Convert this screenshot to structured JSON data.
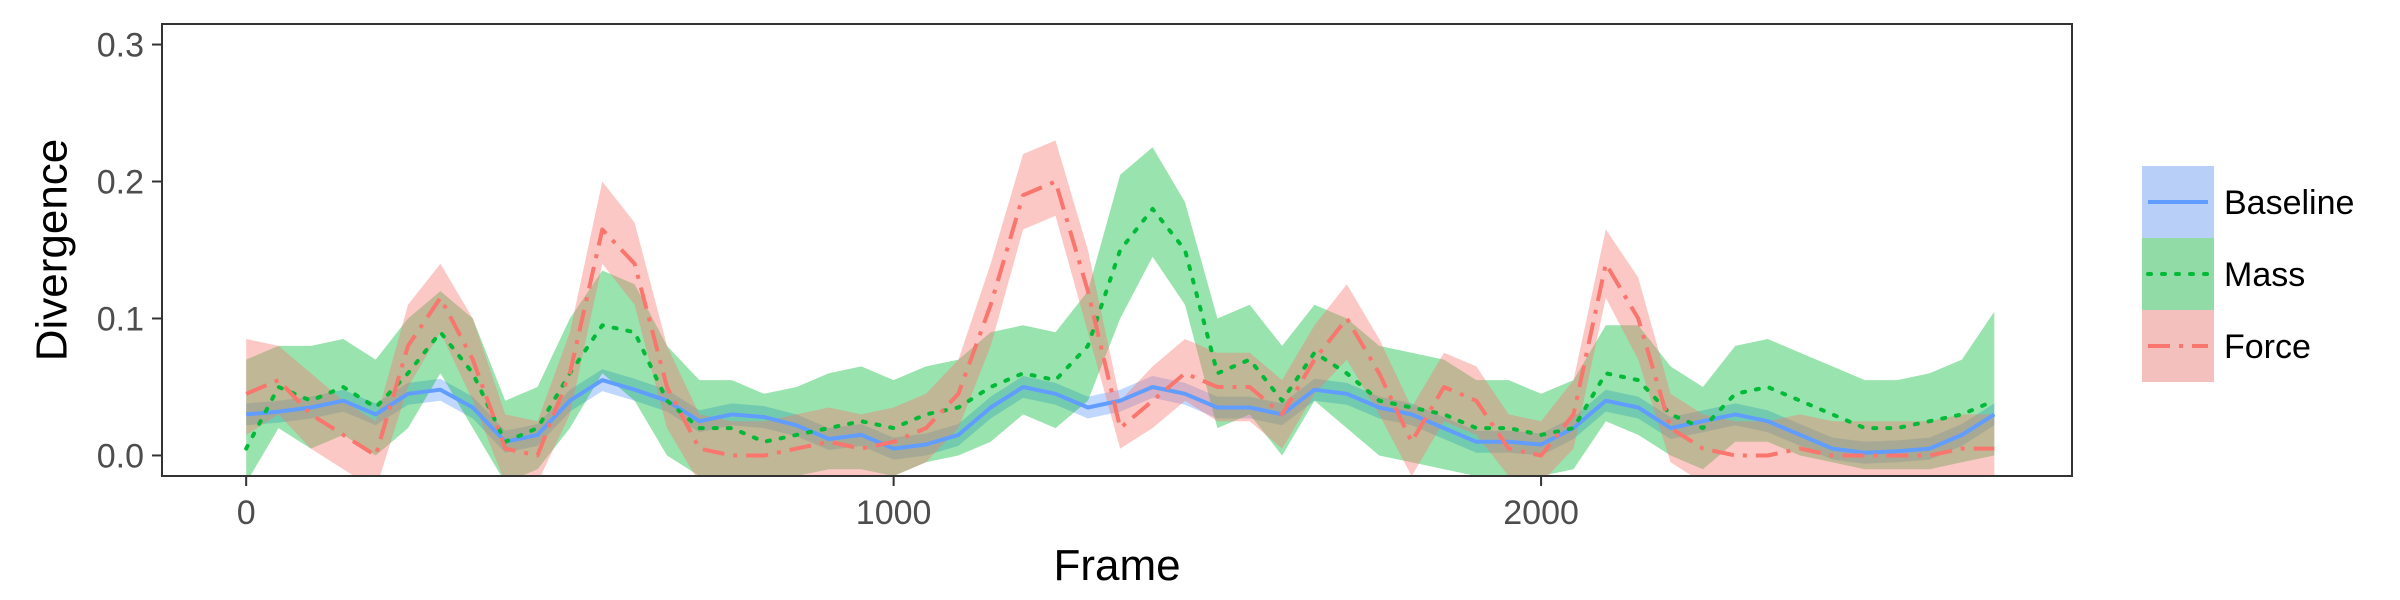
{
  "chart_data": {
    "type": "line",
    "title": "",
    "xlabel": "Frame",
    "ylabel": "Divergence",
    "xlim": [
      -130,
      2820
    ],
    "ylim": [
      -0.015,
      0.315
    ],
    "xticks": [
      0,
      1000,
      2000
    ],
    "xtick_labels": [
      "0",
      "1000",
      "2000"
    ],
    "yticks": [
      0.0,
      0.1,
      0.2,
      0.3
    ],
    "ytick_labels": [
      "0.0",
      "0.1",
      "0.2",
      "0.3"
    ],
    "grid": false,
    "legend_position": "right",
    "x": [
      0,
      50,
      100,
      150,
      200,
      250,
      300,
      350,
      400,
      450,
      500,
      550,
      600,
      650,
      700,
      750,
      800,
      850,
      900,
      950,
      1000,
      1050,
      1100,
      1150,
      1200,
      1250,
      1300,
      1350,
      1400,
      1450,
      1500,
      1550,
      1600,
      1650,
      1700,
      1750,
      1800,
      1850,
      1900,
      1950,
      2000,
      2050,
      2100,
      2150,
      2200,
      2250,
      2300,
      2350,
      2400,
      2450,
      2500,
      2550,
      2600,
      2650,
      2700
    ],
    "series": [
      {
        "name": "Baseline",
        "color": "#619cff",
        "linestyle": "solid",
        "values": [
          0.03,
          0.032,
          0.035,
          0.04,
          0.03,
          0.045,
          0.048,
          0.035,
          0.01,
          0.015,
          0.04,
          0.055,
          0.048,
          0.04,
          0.025,
          0.03,
          0.028,
          0.022,
          0.012,
          0.015,
          0.005,
          0.008,
          0.015,
          0.035,
          0.05,
          0.045,
          0.035,
          0.04,
          0.05,
          0.045,
          0.035,
          0.035,
          0.03,
          0.048,
          0.045,
          0.035,
          0.03,
          0.02,
          0.01,
          0.01,
          0.008,
          0.02,
          0.04,
          0.035,
          0.02,
          0.025,
          0.03,
          0.025,
          0.015,
          0.005,
          0.002,
          0.003,
          0.005,
          0.015,
          0.03
        ],
        "lower": [
          0.022,
          0.024,
          0.027,
          0.032,
          0.022,
          0.037,
          0.04,
          0.027,
          0.002,
          0.007,
          0.032,
          0.047,
          0.04,
          0.032,
          0.017,
          0.022,
          0.02,
          0.014,
          0.004,
          0.007,
          -0.003,
          0.0,
          0.007,
          0.027,
          0.042,
          0.037,
          0.027,
          0.032,
          0.042,
          0.037,
          0.027,
          0.027,
          0.022,
          0.04,
          0.037,
          0.027,
          0.022,
          0.012,
          0.002,
          0.002,
          0.0,
          0.012,
          0.032,
          0.027,
          0.012,
          0.017,
          0.022,
          0.017,
          0.007,
          -0.003,
          -0.006,
          -0.005,
          -0.003,
          0.007,
          0.022
        ],
        "upper": [
          0.038,
          0.04,
          0.043,
          0.048,
          0.038,
          0.053,
          0.056,
          0.043,
          0.018,
          0.023,
          0.048,
          0.063,
          0.056,
          0.048,
          0.033,
          0.038,
          0.036,
          0.03,
          0.02,
          0.023,
          0.013,
          0.016,
          0.023,
          0.043,
          0.058,
          0.053,
          0.043,
          0.048,
          0.058,
          0.053,
          0.043,
          0.043,
          0.038,
          0.056,
          0.053,
          0.043,
          0.038,
          0.028,
          0.018,
          0.018,
          0.016,
          0.028,
          0.048,
          0.043,
          0.028,
          0.033,
          0.038,
          0.033,
          0.023,
          0.013,
          0.01,
          0.011,
          0.013,
          0.023,
          0.038
        ]
      },
      {
        "name": "Mass",
        "color": "#00ba38",
        "linestyle": "dotted",
        "values": [
          0.005,
          0.05,
          0.04,
          0.05,
          0.035,
          0.06,
          0.09,
          0.06,
          0.01,
          0.02,
          0.06,
          0.095,
          0.09,
          0.04,
          0.02,
          0.02,
          0.01,
          0.015,
          0.02,
          0.025,
          0.02,
          0.03,
          0.035,
          0.05,
          0.06,
          0.055,
          0.08,
          0.15,
          0.18,
          0.15,
          0.06,
          0.07,
          0.04,
          0.075,
          0.06,
          0.04,
          0.035,
          0.03,
          0.02,
          0.02,
          0.015,
          0.02,
          0.06,
          0.055,
          0.03,
          0.02,
          0.045,
          0.05,
          0.04,
          0.03,
          0.02,
          0.02,
          0.025,
          0.03,
          0.04
        ],
        "lower": [
          -0.02,
          0.02,
          0.005,
          0.015,
          0.0,
          0.02,
          0.06,
          0.02,
          -0.02,
          -0.01,
          0.02,
          0.06,
          0.04,
          0.0,
          -0.015,
          -0.015,
          -0.015,
          -0.015,
          -0.01,
          -0.01,
          -0.015,
          -0.005,
          0.0,
          0.01,
          0.03,
          0.02,
          0.04,
          0.1,
          0.145,
          0.11,
          0.02,
          0.03,
          0.0,
          0.04,
          0.02,
          0.0,
          -0.005,
          -0.01,
          -0.015,
          -0.015,
          -0.015,
          -0.01,
          0.025,
          0.015,
          0.0,
          -0.01,
          0.01,
          0.01,
          0.0,
          -0.005,
          -0.01,
          -0.01,
          -0.01,
          -0.005,
          0.0
        ],
        "upper": [
          0.07,
          0.08,
          0.08,
          0.085,
          0.07,
          0.1,
          0.12,
          0.1,
          0.04,
          0.05,
          0.1,
          0.135,
          0.125,
          0.08,
          0.055,
          0.055,
          0.045,
          0.05,
          0.06,
          0.065,
          0.055,
          0.065,
          0.07,
          0.09,
          0.095,
          0.09,
          0.12,
          0.205,
          0.225,
          0.185,
          0.1,
          0.11,
          0.08,
          0.11,
          0.1,
          0.08,
          0.075,
          0.07,
          0.055,
          0.055,
          0.045,
          0.055,
          0.095,
          0.095,
          0.065,
          0.05,
          0.08,
          0.085,
          0.075,
          0.065,
          0.055,
          0.055,
          0.06,
          0.07,
          0.105
        ]
      },
      {
        "name": "Force",
        "color": "#f8766d",
        "linestyle": "dashdot",
        "values": [
          0.045,
          0.055,
          0.03,
          0.015,
          0.0,
          0.08,
          0.115,
          0.07,
          0.005,
          0.0,
          0.06,
          0.165,
          0.14,
          0.05,
          0.005,
          0.0,
          0.0,
          0.005,
          0.01,
          0.005,
          0.01,
          0.02,
          0.045,
          0.11,
          0.19,
          0.2,
          0.12,
          0.02,
          0.04,
          0.06,
          0.05,
          0.05,
          0.03,
          0.07,
          0.1,
          0.06,
          0.01,
          0.05,
          0.04,
          0.005,
          0.0,
          0.03,
          0.14,
          0.1,
          0.02,
          0.005,
          0.0,
          0.0,
          0.005,
          0.0,
          0.0,
          0.0,
          0.0,
          0.005,
          0.005
        ],
        "lower": [
          0.015,
          0.03,
          0.005,
          -0.01,
          -0.025,
          0.05,
          0.09,
          0.04,
          -0.02,
          -0.02,
          0.03,
          0.14,
          0.11,
          0.02,
          -0.02,
          -0.02,
          -0.02,
          -0.015,
          -0.015,
          -0.02,
          -0.015,
          -0.005,
          0.02,
          0.08,
          0.165,
          0.175,
          0.09,
          0.005,
          0.02,
          0.04,
          0.025,
          0.025,
          0.005,
          0.045,
          0.07,
          0.03,
          -0.015,
          0.025,
          0.015,
          -0.015,
          -0.02,
          0.005,
          0.115,
          0.07,
          -0.005,
          -0.02,
          -0.02,
          -0.02,
          -0.015,
          -0.02,
          -0.02,
          -0.02,
          -0.02,
          -0.015,
          -0.015
        ],
        "upper": [
          0.085,
          0.08,
          0.06,
          0.04,
          0.025,
          0.11,
          0.14,
          0.1,
          0.03,
          0.025,
          0.09,
          0.2,
          0.17,
          0.08,
          0.03,
          0.025,
          0.025,
          0.03,
          0.035,
          0.03,
          0.035,
          0.045,
          0.07,
          0.14,
          0.22,
          0.23,
          0.15,
          0.04,
          0.065,
          0.085,
          0.075,
          0.075,
          0.055,
          0.095,
          0.125,
          0.085,
          0.035,
          0.075,
          0.065,
          0.03,
          0.025,
          0.055,
          0.165,
          0.13,
          0.045,
          0.03,
          0.025,
          0.025,
          0.03,
          0.025,
          0.025,
          0.025,
          0.025,
          0.03,
          0.03
        ]
      }
    ]
  }
}
